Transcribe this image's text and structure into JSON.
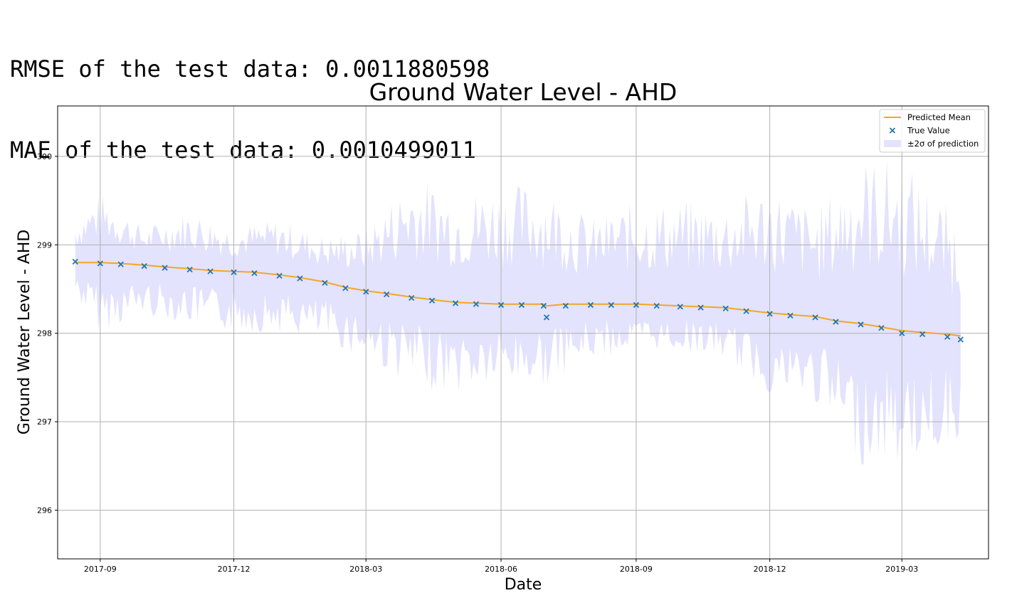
{
  "metrics": {
    "rmse_line": "RMSE of the test data: 0.0011880598",
    "mae_line": "MAE of the test data: 0.0010499011"
  },
  "chart_data": {
    "type": "line",
    "title": "Ground Water Level - AHD",
    "xlabel": "Date",
    "ylabel": "Ground Water Level - AHD",
    "x_range": [
      "2017-08-03",
      "2019-04-29"
    ],
    "ylim": [
      295.45,
      300.57
    ],
    "x_ticks": [
      "2017-09",
      "2017-12",
      "2018-03",
      "2018-06",
      "2018-09",
      "2018-12",
      "2019-03"
    ],
    "y_ticks": [
      296,
      297,
      298,
      299,
      300
    ],
    "grid": true,
    "legend_position": "top-right",
    "series": [
      {
        "name": "Predicted Mean",
        "kind": "line",
        "color": "#f5a623",
        "x": [
          "2017-08-15",
          "2017-09-01",
          "2017-09-15",
          "2017-10-01",
          "2017-10-15",
          "2017-11-01",
          "2017-11-15",
          "2017-12-01",
          "2017-12-15",
          "2018-01-01",
          "2018-01-15",
          "2018-02-01",
          "2018-02-15",
          "2018-03-01",
          "2018-03-15",
          "2018-04-01",
          "2018-04-15",
          "2018-05-01",
          "2018-05-15",
          "2018-06-01",
          "2018-06-15",
          "2018-06-30",
          "2018-07-02",
          "2018-07-15",
          "2018-08-01",
          "2018-08-15",
          "2018-09-01",
          "2018-09-15",
          "2018-10-01",
          "2018-10-15",
          "2018-11-01",
          "2018-11-15",
          "2018-12-01",
          "2018-12-15",
          "2019-01-01",
          "2019-01-15",
          "2019-02-01",
          "2019-02-15",
          "2019-03-01",
          "2019-03-15",
          "2019-04-01",
          "2019-04-10"
        ],
        "values": [
          298.8,
          298.8,
          298.79,
          298.77,
          298.75,
          298.73,
          298.71,
          298.7,
          298.69,
          298.66,
          298.63,
          298.58,
          298.52,
          298.48,
          298.45,
          298.41,
          298.38,
          298.35,
          298.34,
          298.33,
          298.33,
          298.33,
          298.31,
          298.33,
          298.33,
          298.33,
          298.33,
          298.32,
          298.31,
          298.3,
          298.29,
          298.26,
          298.23,
          298.21,
          298.19,
          298.14,
          298.11,
          298.07,
          298.03,
          298.01,
          297.99,
          297.97
        ]
      },
      {
        "name": "True Value",
        "kind": "scatter",
        "color": "#1f77b4",
        "x": [
          "2017-08-15",
          "2017-09-01",
          "2017-09-15",
          "2017-10-01",
          "2017-10-15",
          "2017-11-01",
          "2017-11-15",
          "2017-12-01",
          "2017-12-15",
          "2018-01-01",
          "2018-01-15",
          "2018-02-01",
          "2018-02-15",
          "2018-03-01",
          "2018-03-15",
          "2018-04-01",
          "2018-04-15",
          "2018-05-01",
          "2018-05-15",
          "2018-06-01",
          "2018-06-15",
          "2018-06-30",
          "2018-07-02",
          "2018-07-15",
          "2018-08-01",
          "2018-08-15",
          "2018-09-01",
          "2018-09-15",
          "2018-10-01",
          "2018-10-15",
          "2018-11-01",
          "2018-11-15",
          "2018-12-01",
          "2018-12-15",
          "2019-01-01",
          "2019-01-15",
          "2019-02-01",
          "2019-02-15",
          "2019-03-01",
          "2019-03-15",
          "2019-04-01",
          "2019-04-10"
        ],
        "values": [
          298.81,
          298.79,
          298.78,
          298.76,
          298.74,
          298.72,
          298.7,
          298.69,
          298.68,
          298.65,
          298.62,
          298.57,
          298.51,
          298.47,
          298.44,
          298.4,
          298.37,
          298.34,
          298.33,
          298.32,
          298.32,
          298.31,
          298.18,
          298.31,
          298.32,
          298.32,
          298.32,
          298.31,
          298.3,
          298.29,
          298.28,
          298.25,
          298.22,
          298.2,
          298.18,
          298.13,
          298.1,
          298.06,
          298.0,
          297.99,
          297.96,
          297.93
        ]
      },
      {
        "name": "±2σ of prediction",
        "kind": "band",
        "color": "#e3e3fd",
        "x": [
          "2017-08-15",
          "2017-09-01",
          "2017-10-01",
          "2017-11-01",
          "2017-12-01",
          "2018-01-01",
          "2018-02-01",
          "2018-03-01",
          "2018-04-01",
          "2018-05-01",
          "2018-06-01",
          "2018-07-01",
          "2018-08-01",
          "2018-09-01",
          "2018-10-01",
          "2018-11-01",
          "2018-12-01",
          "2019-01-01",
          "2019-02-01",
          "2019-03-01",
          "2019-04-10"
        ],
        "lower": [
          298.4,
          298.0,
          298.2,
          298.1,
          298.0,
          298.0,
          297.9,
          297.7,
          297.4,
          297.3,
          297.4,
          297.4,
          297.7,
          297.8,
          297.8,
          297.7,
          297.3,
          297.2,
          296.5,
          296.5,
          296.8
        ],
        "upper": [
          299.3,
          299.6,
          299.2,
          299.4,
          299.2,
          299.3,
          299.1,
          299.2,
          299.8,
          299.6,
          299.7,
          299.7,
          299.3,
          299.5,
          299.5,
          299.5,
          299.7,
          299.4,
          300.0,
          300.0,
          299.3
        ]
      }
    ]
  }
}
